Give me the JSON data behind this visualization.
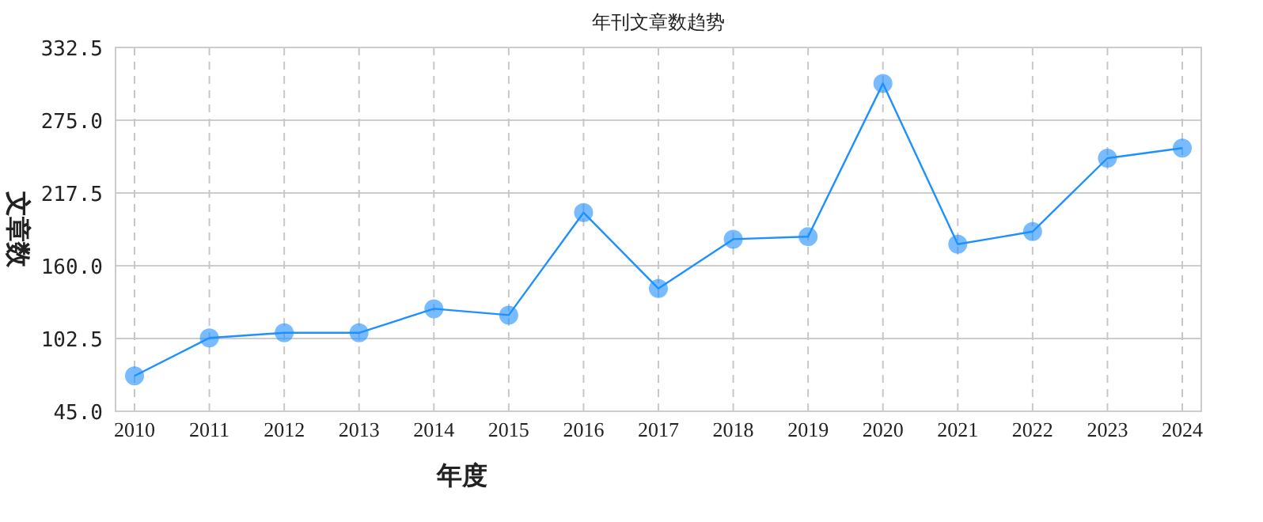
{
  "chart_data": {
    "type": "line",
    "title": "年刊文章数趋势",
    "xlabel": "年度",
    "ylabel": "文章数",
    "categories": [
      "2010",
      "2011",
      "2012",
      "2013",
      "2014",
      "2015",
      "2016",
      "2017",
      "2018",
      "2019",
      "2020",
      "2021",
      "2022",
      "2023",
      "2024"
    ],
    "series": [
      {
        "color": "#1e90ff",
        "values": [
          73,
          103,
          107,
          107,
          126,
          121,
          202,
          142,
          181,
          183,
          304,
          177,
          187,
          245,
          253
        ]
      }
    ],
    "ylim": [
      45.0,
      332.5
    ],
    "yticks": [
      {
        "value": 45,
        "label": "45.0"
      },
      {
        "value": 102.5,
        "label": "102.5"
      },
      {
        "value": 160,
        "label": "160.0"
      },
      {
        "value": 217.5,
        "label": "217.5"
      },
      {
        "value": 275,
        "label": "275.0"
      },
      {
        "value": 332.5,
        "label": "332.5"
      }
    ],
    "grid": true,
    "marker": "circle",
    "line_style": "solid"
  }
}
